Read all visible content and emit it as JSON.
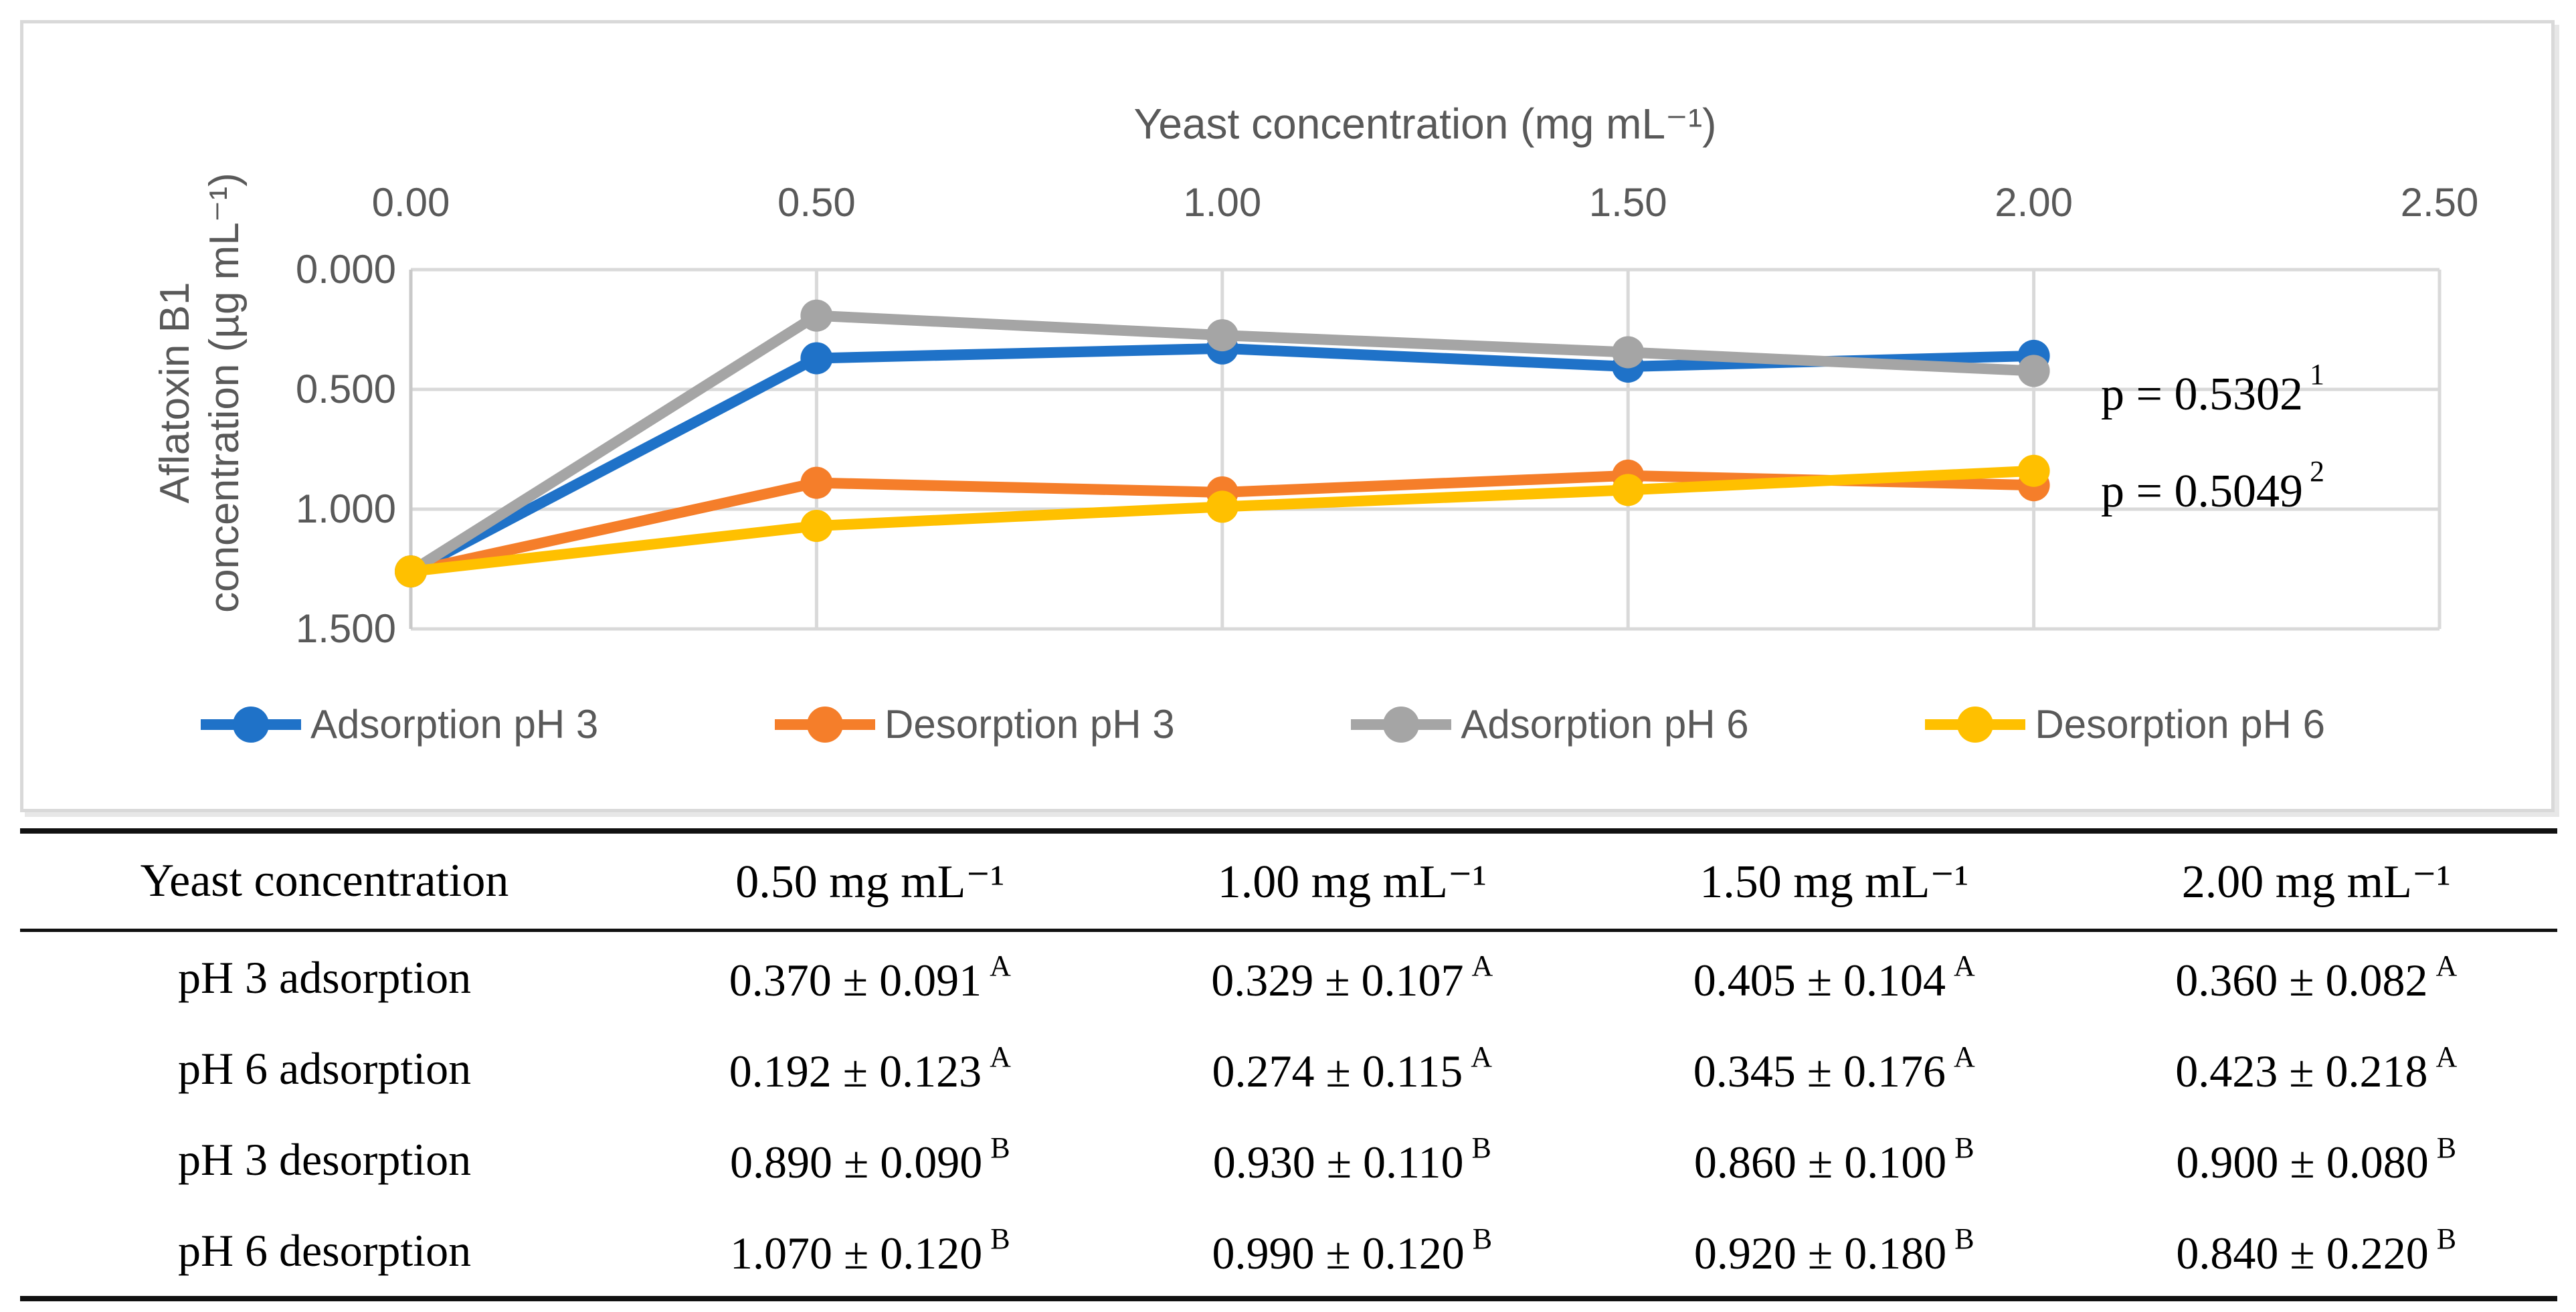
{
  "chart_data": {
    "type": "line",
    "title": "",
    "x_axis": {
      "label": "Yeast concentration (mg mL⁻¹)",
      "ticks": [
        "0.00",
        "0.50",
        "1.00",
        "1.50",
        "2.00",
        "2.50"
      ],
      "tick_values": [
        0.0,
        0.5,
        1.0,
        1.5,
        2.0,
        2.5
      ],
      "range": [
        0.0,
        2.5
      ],
      "position": "top"
    },
    "y_axis": {
      "label_line1": "Aflatoxin B1",
      "label_line2": "concentration (µg mL⁻¹)",
      "ticks": [
        "0.000",
        "0.500",
        "1.000",
        "1.500"
      ],
      "tick_values": [
        0.0,
        0.5,
        1.0,
        1.5
      ],
      "range": [
        0.0,
        1.5
      ],
      "direction": "reversed"
    },
    "grid": true,
    "legend_position": "bottom",
    "x": [
      0.0,
      0.5,
      1.0,
      1.5,
      2.0
    ],
    "series": [
      {
        "name": "Adsorption pH 3",
        "color": "#1f72c8",
        "values": [
          1.26,
          0.37,
          0.329,
          0.405,
          0.36
        ]
      },
      {
        "name": "Desorption pH 3",
        "color": "#f57e2a",
        "values": [
          1.26,
          0.89,
          0.93,
          0.86,
          0.9
        ]
      },
      {
        "name": "Adsorption pH 6",
        "color": "#a5a5a5",
        "values": [
          1.26,
          0.192,
          0.274,
          0.345,
          0.423
        ]
      },
      {
        "name": "Desorption pH 6",
        "color": "#ffc000",
        "values": [
          1.26,
          1.07,
          0.99,
          0.92,
          0.84
        ]
      }
    ],
    "annotations": [
      {
        "text": "p = 0.5302",
        "sup": "1"
      },
      {
        "text": "p = 0.5049",
        "sup": "2"
      }
    ]
  },
  "table": {
    "headers": [
      "Yeast concentration",
      "0.50 mg mL⁻¹",
      "1.00 mg mL⁻¹",
      "1.50 mg mL⁻¹",
      "2.00 mg mL⁻¹"
    ],
    "rows": [
      {
        "label": "pH 3 adsorption",
        "cells": [
          {
            "v": "0.370 ± 0.091",
            "sup": "A"
          },
          {
            "v": "0.329 ± 0.107",
            "sup": "A"
          },
          {
            "v": "0.405 ± 0.104",
            "sup": "A"
          },
          {
            "v": "0.360 ± 0.082",
            "sup": "A"
          }
        ]
      },
      {
        "label": "pH 6 adsorption",
        "cells": [
          {
            "v": "0.192 ± 0.123",
            "sup": "A"
          },
          {
            "v": "0.274 ± 0.115",
            "sup": "A"
          },
          {
            "v": "0.345 ± 0.176",
            "sup": "A"
          },
          {
            "v": "0.423 ± 0.218",
            "sup": "A"
          }
        ]
      },
      {
        "label": "pH 3 desorption",
        "cells": [
          {
            "v": "0.890 ± 0.090",
            "sup": "B"
          },
          {
            "v": "0.930 ± 0.110",
            "sup": "B"
          },
          {
            "v": "0.860 ± 0.100",
            "sup": "B"
          },
          {
            "v": "0.900 ± 0.080",
            "sup": "B"
          }
        ]
      },
      {
        "label": "pH 6 desorption",
        "cells": [
          {
            "v": "1.070 ± 0.120",
            "sup": "B"
          },
          {
            "v": "0.990 ± 0.120",
            "sup": "B"
          },
          {
            "v": "0.920 ± 0.180",
            "sup": "B"
          },
          {
            "v": "0.840 ± 0.220",
            "sup": "B"
          }
        ]
      }
    ]
  },
  "colors": {
    "axis_text": "#595959",
    "gridline": "#d9d9d9",
    "axis_line": "#c9c9c9",
    "panel_border": "#d9d9d9",
    "table_rule": "#111111"
  }
}
